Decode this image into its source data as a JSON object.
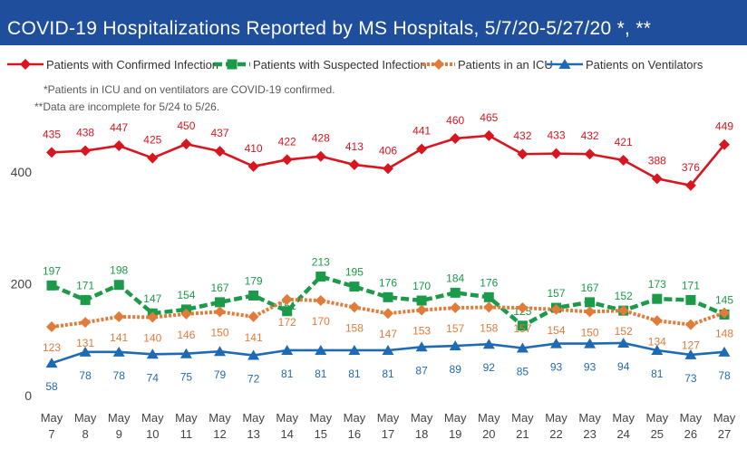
{
  "header": {
    "title": "COVID-19 Hospitalizations Reported by MS Hospitals, 5/7/20-5/27/20 *, **"
  },
  "notes": {
    "line1": "*Patients in ICU and on ventilators are COVID-19 confirmed.",
    "line2": "**Data are incomplete for 5/24 to 5/26."
  },
  "colors": {
    "header_bg": "#1f4e9c",
    "confirmed": "#d7161f",
    "suspected": "#1b9a49",
    "icu": "#e07b39",
    "ventilators": "#1f6ab4"
  },
  "chart_data": {
    "type": "line",
    "title": "COVID-19 Hospitalizations Reported by MS Hospitals, 5/7/20-5/27/20 *, **",
    "xlabel": "",
    "ylabel": "",
    "ylim": [
      0,
      500
    ],
    "yticks": [
      0,
      200,
      400
    ],
    "grid": false,
    "legend_position": "top",
    "categories": [
      [
        "May",
        "7"
      ],
      [
        "May",
        "8"
      ],
      [
        "May",
        "9"
      ],
      [
        "May",
        "10"
      ],
      [
        "May",
        "11"
      ],
      [
        "May",
        "12"
      ],
      [
        "May",
        "13"
      ],
      [
        "May",
        "14"
      ],
      [
        "May",
        "15"
      ],
      [
        "May",
        "16"
      ],
      [
        "May",
        "17"
      ],
      [
        "May",
        "18"
      ],
      [
        "May",
        "19"
      ],
      [
        "May",
        "20"
      ],
      [
        "May",
        "21"
      ],
      [
        "May",
        "22"
      ],
      [
        "May",
        "23"
      ],
      [
        "May",
        "24"
      ],
      [
        "May",
        "25"
      ],
      [
        "May",
        "26"
      ],
      [
        "May",
        "27"
      ]
    ],
    "series": [
      {
        "name": "Patients with Confirmed Infection",
        "color": "#d7161f",
        "style": "solid",
        "marker": "diamond",
        "values": [
          435,
          438,
          447,
          425,
          450,
          437,
          410,
          422,
          428,
          413,
          406,
          441,
          460,
          465,
          432,
          433,
          432,
          421,
          388,
          376,
          449
        ]
      },
      {
        "name": "Patients with Suspected Infection",
        "color": "#1b9a49",
        "style": "dashed",
        "marker": "square",
        "values": [
          197,
          171,
          198,
          147,
          154,
          167,
          179,
          151,
          213,
          195,
          176,
          170,
          184,
          176,
          125,
          157,
          167,
          152,
          173,
          171,
          145
        ]
      },
      {
        "name": "Patients in an ICU",
        "color": "#e07b39",
        "style": "dotted",
        "marker": "diamond",
        "values": [
          123,
          131,
          141,
          140,
          146,
          150,
          141,
          172,
          170,
          158,
          147,
          153,
          157,
          158,
          157,
          154,
          150,
          152,
          134,
          127,
          148
        ]
      },
      {
        "name": "Patients on Ventilators",
        "color": "#1f6ab4",
        "style": "solid",
        "marker": "triangle",
        "values": [
          58,
          78,
          78,
          74,
          75,
          79,
          72,
          81,
          81,
          81,
          81,
          87,
          89,
          92,
          85,
          93,
          93,
          94,
          81,
          73,
          78
        ]
      }
    ]
  }
}
